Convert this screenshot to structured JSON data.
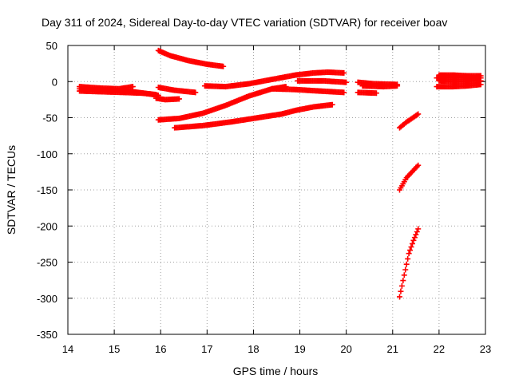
{
  "chart_data": {
    "type": "scatter",
    "title": "Day 311 of 2024, Sidereal Day-to-day VTEC variation (SDTVAR) for receiver boav",
    "xlabel": "GPS time / hours",
    "ylabel": "SDTVAR / TECUs",
    "xlim": [
      14,
      23
    ],
    "ylim": [
      -350,
      50
    ],
    "x_ticks": [
      14,
      15,
      16,
      17,
      18,
      19,
      20,
      21,
      22,
      23
    ],
    "y_ticks": [
      50,
      0,
      -50,
      -100,
      -150,
      -200,
      -250,
      -300,
      -350
    ],
    "grid": true,
    "marker": "plus",
    "marker_color": "#ff0000",
    "series": [
      {
        "x": [
          14.25,
          14.6,
          15.0,
          15.4,
          15.75,
          15.95
        ],
        "y": [
          -10,
          -11,
          -12,
          -14,
          -17,
          -19
        ]
      },
      {
        "x": [
          14.25,
          14.7,
          15.1,
          15.4
        ],
        "y": [
          -7,
          -9,
          -10,
          -7
        ]
      },
      {
        "x": [
          14.25,
          14.7,
          15.2,
          15.6,
          15.9
        ],
        "y": [
          -13,
          -14,
          -15,
          -16,
          -18
        ]
      },
      {
        "x": [
          15.9,
          16.1,
          16.4
        ],
        "y": [
          -23,
          -25,
          -24
        ]
      },
      {
        "x": [
          15.95,
          16.2,
          16.6,
          17.0,
          17.35
        ],
        "y": [
          43,
          36,
          29,
          24,
          21
        ]
      },
      {
        "x": [
          15.95,
          16.3,
          16.75
        ],
        "y": [
          -8,
          -12,
          -15
        ]
      },
      {
        "x": [
          15.95,
          16.4,
          16.9,
          17.4,
          17.9,
          18.4,
          18.7
        ],
        "y": [
          -53,
          -51,
          -44,
          -33,
          -20,
          -10,
          -7
        ]
      },
      {
        "x": [
          16.3,
          16.9,
          17.5,
          18.1,
          18.6,
          18.9,
          19.3,
          19.7
        ],
        "y": [
          -64,
          -61,
          -56,
          -50,
          -45,
          -40,
          -35,
          -32
        ]
      },
      {
        "x": [
          16.95,
          17.4,
          17.9,
          18.4,
          18.9,
          19.3,
          19.6,
          19.95
        ],
        "y": [
          -6,
          -7,
          -3,
          3,
          9,
          12,
          13,
          12
        ]
      },
      {
        "x": [
          18.4,
          18.9,
          19.4,
          19.95
        ],
        "y": [
          -10,
          -11,
          -13,
          -15
        ]
      },
      {
        "x": [
          18.95,
          19.5,
          20.0
        ],
        "y": [
          1,
          1,
          -1
        ]
      },
      {
        "x": [
          20.25,
          20.6,
          21.1
        ],
        "y": [
          -1,
          -3,
          -4
        ]
      },
      {
        "x": [
          20.25,
          20.65
        ],
        "y": [
          -15,
          -16
        ]
      },
      {
        "x": [
          20.35,
          20.8,
          21.1
        ],
        "y": [
          -6,
          -7,
          -6
        ]
      },
      {
        "x": [
          21.15,
          21.3,
          21.55
        ],
        "y": [
          -64,
          -56,
          -45
        ]
      },
      {
        "x": [
          21.15,
          21.3,
          21.55
        ],
        "y": [
          -150,
          -133,
          -116
        ]
      },
      {
        "x": [
          21.15,
          21.25,
          21.35,
          21.45,
          21.55
        ],
        "y": [
          -298,
          -268,
          -238,
          -220,
          -204
        ]
      },
      {
        "x": [
          21.95,
          22.3,
          22.6,
          22.9
        ],
        "y": [
          -7,
          -7,
          -6,
          -4
        ]
      },
      {
        "x": [
          21.95,
          22.3,
          22.6,
          22.9
        ],
        "y": [
          5,
          6,
          6,
          5
        ]
      },
      {
        "x": [
          22.0,
          22.3,
          22.6,
          22.9
        ],
        "y": [
          9,
          9,
          8,
          8
        ]
      },
      {
        "x": [
          22.0,
          22.4,
          22.9
        ],
        "y": [
          1,
          0,
          1
        ]
      }
    ]
  }
}
